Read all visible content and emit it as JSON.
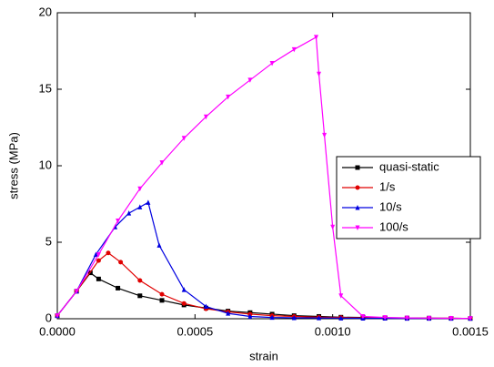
{
  "chart_data": {
    "type": "line",
    "x_label": "strain",
    "y_label": "stress (MPa)",
    "xlim": [
      0,
      0.0015
    ],
    "ylim": [
      0,
      20
    ],
    "xticks": [
      {
        "value": 0,
        "label": "0.0000"
      },
      {
        "value": 0.0005,
        "label": "0.0005"
      },
      {
        "value": 0.001,
        "label": "0.0010"
      },
      {
        "value": 0.0015,
        "label": "0.0015"
      }
    ],
    "yticks": [
      0,
      5,
      10,
      15,
      20
    ],
    "series": [
      {
        "name": "quasi-static",
        "color": "#000000",
        "marker": "square",
        "x": [
          0,
          7e-05,
          0.00012,
          0.00015,
          0.00022,
          0.0003,
          0.00038,
          0.00046,
          0.00054,
          0.00062,
          0.0007,
          0.00078,
          0.00086,
          0.00095,
          0.00103,
          0.00111,
          0.00119,
          0.00127,
          0.00135,
          0.00143,
          0.0015
        ],
        "values": [
          0.2,
          1.8,
          3.0,
          2.6,
          2.0,
          1.5,
          1.2,
          0.9,
          0.7,
          0.5,
          0.4,
          0.3,
          0.2,
          0.15,
          0.1,
          0.08,
          0.06,
          0.05,
          0.04,
          0.03,
          0.02
        ]
      },
      {
        "name": "1/s",
        "color": "#e00000",
        "marker": "circle",
        "x": [
          0,
          7e-05,
          0.00015,
          0.000185,
          0.00023,
          0.0003,
          0.00038,
          0.00046,
          0.00054,
          0.00062,
          0.0007,
          0.00078,
          0.00086,
          0.00095,
          0.00103,
          0.00111,
          0.00119,
          0.00127,
          0.00135,
          0.00143,
          0.0015
        ],
        "values": [
          0.2,
          1.8,
          3.8,
          4.3,
          3.7,
          2.5,
          1.6,
          1.0,
          0.65,
          0.45,
          0.3,
          0.2,
          0.15,
          0.1,
          0.08,
          0.06,
          0.05,
          0.04,
          0.03,
          0.03,
          0.02
        ]
      },
      {
        "name": "10/s",
        "color": "#0000e0",
        "marker": "triangle-up",
        "x": [
          0,
          7e-05,
          0.00014,
          0.00021,
          0.00026,
          0.0003,
          0.00033,
          0.00037,
          0.00046,
          0.00054,
          0.00062,
          0.0007,
          0.00078,
          0.00086,
          0.00095,
          0.00103,
          0.00111,
          0.00119,
          0.00127,
          0.00135,
          0.00143,
          0.0015
        ],
        "values": [
          0.2,
          1.8,
          4.2,
          6.0,
          6.9,
          7.3,
          7.6,
          4.8,
          1.9,
          0.8,
          0.35,
          0.15,
          0.08,
          0.06,
          0.05,
          0.04,
          0.03,
          0.03,
          0.02,
          0.02,
          0.02,
          0.02
        ]
      },
      {
        "name": "100/s",
        "color": "#ff00ff",
        "marker": "triangle-down",
        "x": [
          0,
          7e-05,
          0.00015,
          0.00022,
          0.0003,
          0.00038,
          0.00046,
          0.00054,
          0.00062,
          0.0007,
          0.00078,
          0.00086,
          0.00094,
          0.00095,
          0.00097,
          0.001,
          0.00103,
          0.00111,
          0.00119,
          0.00127,
          0.00135,
          0.00143,
          0.0015
        ],
        "values": [
          0.2,
          1.8,
          4.2,
          6.4,
          8.5,
          10.2,
          11.8,
          13.2,
          14.5,
          15.6,
          16.7,
          17.6,
          18.4,
          16.0,
          12.0,
          6.0,
          1.5,
          0.15,
          0.08,
          0.05,
          0.04,
          0.03,
          0.02
        ]
      }
    ]
  }
}
